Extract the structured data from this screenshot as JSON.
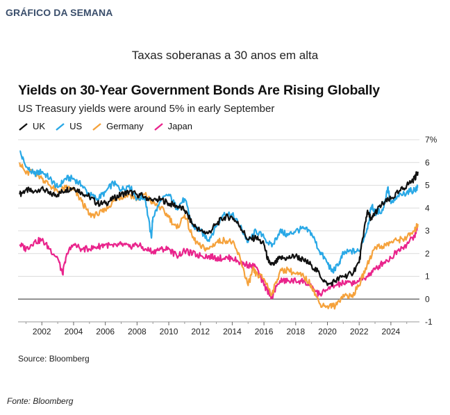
{
  "header": {
    "label": "GRÁFICO DA SEMANA"
  },
  "article_subtitle": "Taxas soberanas a 30 anos em alta",
  "footer": {
    "credit": "Fonte: Bloomberg"
  },
  "chart_data": {
    "type": "line",
    "title": "Yields on 30-Year Government Bonds Are Rising Globally",
    "subtitle": "US Treasury yields were around 5% in early September",
    "source": "Source: Bloomberg",
    "xlabel": "",
    "ylabel": "",
    "xlim": [
      2000.5,
      2025.8
    ],
    "ylim": [
      -1,
      7
    ],
    "x_ticks": [
      2002,
      2004,
      2006,
      2008,
      2010,
      2012,
      2014,
      2016,
      2018,
      2020,
      2022,
      2024
    ],
    "x_tick_labels": [
      "2002",
      "2004",
      "2006",
      "2008",
      "2010",
      "2012",
      "2014",
      "2016",
      "2018",
      "2020",
      "2022",
      "2024"
    ],
    "y_ticks": [
      -1,
      0,
      1,
      2,
      3,
      4,
      5,
      6,
      7
    ],
    "y_tick_labels": [
      "-1",
      "0",
      "1",
      "2",
      "3",
      "4",
      "5",
      "6",
      "7%"
    ],
    "grid": true,
    "legend_position": "top-left",
    "series": [
      {
        "name": "UK",
        "color": "#111111",
        "x": [
          2000.6,
          2001,
          2001.5,
          2002,
          2002.5,
          2003,
          2003.5,
          2004,
          2004.5,
          2005,
          2005.5,
          2006,
          2006.5,
          2007,
          2007.5,
          2008,
          2008.5,
          2009,
          2009.5,
          2010,
          2010.5,
          2011,
          2011.5,
          2012,
          2012.5,
          2013,
          2013.5,
          2014,
          2014.5,
          2015,
          2015.5,
          2016,
          2016.3,
          2016.6,
          2017,
          2017.5,
          2018,
          2018.5,
          2019,
          2019.5,
          2020,
          2020.5,
          2021,
          2021.5,
          2022,
          2022.3,
          2022.5,
          2022.8,
          2023,
          2023.5,
          2024,
          2024.5,
          2025,
          2025.5,
          2025.7
        ],
        "values": [
          4.6,
          4.8,
          4.7,
          4.9,
          4.6,
          4.6,
          4.8,
          4.9,
          4.7,
          4.5,
          4.2,
          4.2,
          4.4,
          4.6,
          4.7,
          4.6,
          4.5,
          4.3,
          4.4,
          4.2,
          4.1,
          3.9,
          3.3,
          3.0,
          2.9,
          3.3,
          3.6,
          3.6,
          3.2,
          2.6,
          2.7,
          2.4,
          1.6,
          1.5,
          1.8,
          1.8,
          1.9,
          1.7,
          1.5,
          1.1,
          0.6,
          0.8,
          1.0,
          1.1,
          1.6,
          3.0,
          3.8,
          3.5,
          3.8,
          4.2,
          4.4,
          4.7,
          5.0,
          5.3,
          5.6
        ]
      },
      {
        "name": "US",
        "color": "#29a8e6",
        "x": [
          2000.6,
          2001,
          2001.5,
          2002,
          2002.5,
          2003,
          2003.5,
          2004,
          2004.5,
          2005,
          2005.5,
          2006,
          2006.5,
          2007,
          2007.5,
          2008,
          2008.5,
          2008.9,
          2009,
          2009.5,
          2010,
          2010.5,
          2011,
          2011.5,
          2012,
          2012.5,
          2013,
          2013.5,
          2014,
          2014.5,
          2015,
          2015.5,
          2016,
          2016.5,
          2017,
          2017.5,
          2018,
          2018.5,
          2019,
          2019.5,
          2020,
          2020.3,
          2020.7,
          2021,
          2021.5,
          2022,
          2022.5,
          2022.8,
          2023,
          2023.5,
          2023.8,
          2024,
          2024.5,
          2025,
          2025.5,
          2025.7
        ],
        "values": [
          6.5,
          5.8,
          5.5,
          5.6,
          5.3,
          4.9,
          5.3,
          5.3,
          5.0,
          4.6,
          4.4,
          4.7,
          5.1,
          4.8,
          5.0,
          4.4,
          4.5,
          2.7,
          3.6,
          4.3,
          4.6,
          4.0,
          4.4,
          3.2,
          3.0,
          2.6,
          3.2,
          3.8,
          3.7,
          3.2,
          2.5,
          3.0,
          2.7,
          2.3,
          3.0,
          2.8,
          3.0,
          3.1,
          2.9,
          2.1,
          1.6,
          1.2,
          1.5,
          2.0,
          2.1,
          2.1,
          3.1,
          4.1,
          3.8,
          3.9,
          4.9,
          4.2,
          4.5,
          4.7,
          4.8,
          4.9
        ]
      },
      {
        "name": "Germany",
        "color": "#f5a23c",
        "x": [
          2000.6,
          2001,
          2001.5,
          2002,
          2002.5,
          2003,
          2003.5,
          2004,
          2004.5,
          2005,
          2005.5,
          2006,
          2006.5,
          2007,
          2007.5,
          2008,
          2008.5,
          2009,
          2009.5,
          2010,
          2010.5,
          2011,
          2011.5,
          2012,
          2012.5,
          2013,
          2013.5,
          2014,
          2014.5,
          2015,
          2015.3,
          2015.5,
          2016,
          2016.5,
          2017,
          2017.5,
          2018,
          2018.5,
          2019,
          2019.5,
          2020,
          2020.5,
          2021,
          2021.5,
          2022,
          2022.5,
          2023,
          2023.5,
          2024,
          2024.5,
          2025,
          2025.5,
          2025.7
        ],
        "values": [
          6.0,
          5.5,
          5.6,
          5.3,
          5.0,
          4.7,
          4.9,
          4.8,
          4.3,
          3.7,
          3.7,
          3.9,
          4.3,
          4.5,
          4.6,
          4.4,
          4.6,
          4.2,
          4.0,
          3.6,
          3.1,
          3.7,
          2.7,
          2.3,
          2.2,
          2.5,
          2.6,
          2.5,
          1.8,
          0.6,
          1.3,
          1.1,
          0.9,
          0.2,
          1.2,
          1.3,
          1.1,
          1.0,
          0.6,
          -0.2,
          -0.3,
          -0.3,
          0.2,
          0.1,
          0.6,
          1.5,
          2.3,
          2.3,
          2.5,
          2.6,
          2.7,
          3.0,
          3.3
        ]
      },
      {
        "name": "Japan",
        "color": "#e9248c",
        "x": [
          2000.6,
          2001,
          2001.5,
          2002,
          2002.5,
          2003,
          2003.3,
          2003.6,
          2004,
          2004.5,
          2005,
          2005.5,
          2006,
          2006.5,
          2007,
          2007.5,
          2008,
          2008.5,
          2009,
          2009.5,
          2010,
          2010.5,
          2011,
          2011.5,
          2012,
          2012.5,
          2013,
          2013.5,
          2014,
          2014.5,
          2015,
          2015.5,
          2016,
          2016.5,
          2017,
          2017.5,
          2018,
          2018.5,
          2019,
          2019.5,
          2020,
          2020.5,
          2021,
          2021.5,
          2022,
          2022.5,
          2023,
          2023.5,
          2024,
          2024.5,
          2025,
          2025.5,
          2025.7
        ],
        "values": [
          2.4,
          2.2,
          2.5,
          2.6,
          2.2,
          1.8,
          1.1,
          2.0,
          2.4,
          2.2,
          2.2,
          2.3,
          2.4,
          2.3,
          2.4,
          2.3,
          2.4,
          2.2,
          2.1,
          2.2,
          2.2,
          1.9,
          2.1,
          2.0,
          1.9,
          1.9,
          1.8,
          1.8,
          1.8,
          1.6,
          1.5,
          1.4,
          0.6,
          0.1,
          0.8,
          0.8,
          0.8,
          0.8,
          0.5,
          0.2,
          0.4,
          0.6,
          0.7,
          0.7,
          0.8,
          1.0,
          1.3,
          1.6,
          1.8,
          2.2,
          2.4,
          2.8,
          3.2
        ]
      }
    ]
  }
}
